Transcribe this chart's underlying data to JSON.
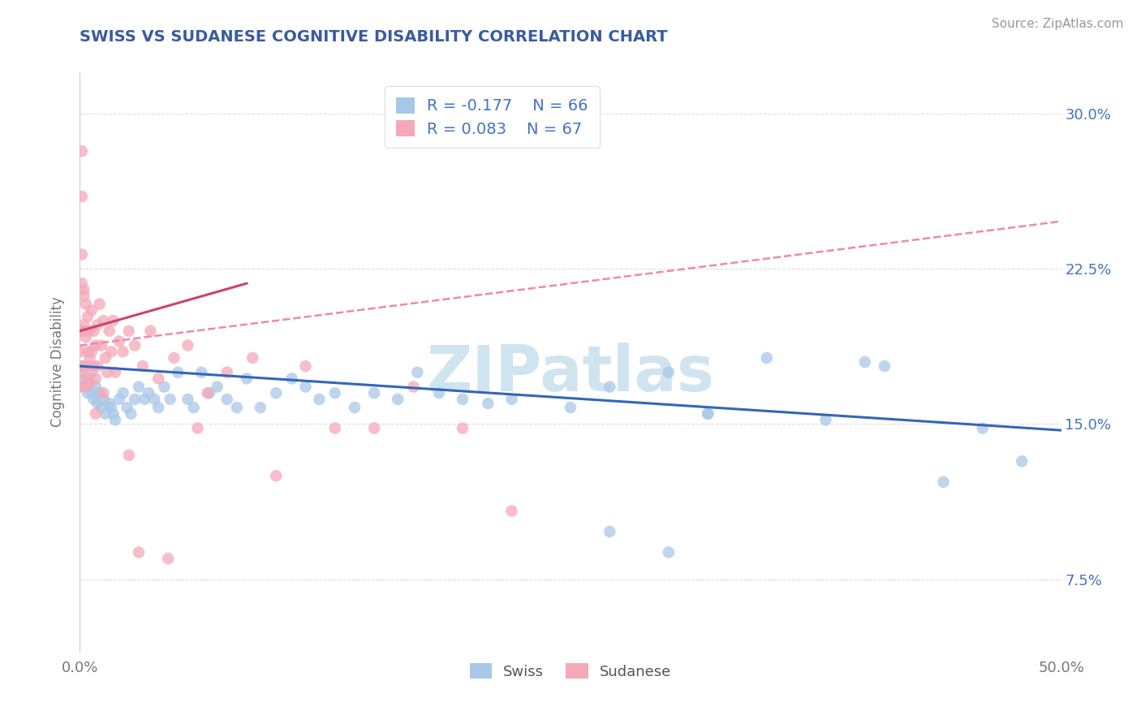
{
  "title": "SWISS VS SUDANESE COGNITIVE DISABILITY CORRELATION CHART",
  "source": "Source: ZipAtlas.com",
  "ylabel": "Cognitive Disability",
  "xlim": [
    0.0,
    0.5
  ],
  "ylim": [
    0.04,
    0.32
  ],
  "yticks": [
    0.075,
    0.15,
    0.225,
    0.3
  ],
  "ytick_labels": [
    "7.5%",
    "15.0%",
    "22.5%",
    "30.0%"
  ],
  "xticks": [
    0.0,
    0.5
  ],
  "xtick_labels": [
    "0.0%",
    "50.0%"
  ],
  "swiss_color": "#A8C8E8",
  "sudanese_color": "#F4A8B8",
  "swiss_line_color": "#3366BB",
  "sudanese_line_color": "#CC4466",
  "sudanese_line_dashed_color": "#EE88AA",
  "swiss_R": -0.177,
  "swiss_N": 66,
  "sudanese_R": 0.083,
  "sudanese_N": 67,
  "watermark": "ZIPatlas",
  "legend_swiss_label": "Swiss",
  "legend_sudanese_label": "Sudanese",
  "swiss_line_x0": 0.0,
  "swiss_line_y0": 0.178,
  "swiss_line_x1": 0.5,
  "swiss_line_y1": 0.147,
  "sudanese_line_solid_x0": 0.0,
  "sudanese_line_solid_y0": 0.195,
  "sudanese_line_solid_x1": 0.085,
  "sudanese_line_solid_x1_end": 0.085,
  "sudanese_line_solid_y1": 0.218,
  "sudanese_line_dashed_x0": 0.0,
  "sudanese_line_dashed_y0": 0.188,
  "sudanese_line_dashed_x1": 0.5,
  "sudanese_line_dashed_y1": 0.248,
  "swiss_points_x": [
    0.001,
    0.002,
    0.003,
    0.004,
    0.005,
    0.006,
    0.007,
    0.008,
    0.009,
    0.01,
    0.011,
    0.012,
    0.013,
    0.015,
    0.016,
    0.017,
    0.018,
    0.02,
    0.022,
    0.024,
    0.026,
    0.028,
    0.03,
    0.033,
    0.035,
    0.038,
    0.04,
    0.043,
    0.046,
    0.05,
    0.055,
    0.058,
    0.062,
    0.066,
    0.07,
    0.075,
    0.08,
    0.085,
    0.092,
    0.1,
    0.108,
    0.115,
    0.122,
    0.13,
    0.14,
    0.15,
    0.162,
    0.172,
    0.183,
    0.195,
    0.208,
    0.22,
    0.25,
    0.27,
    0.3,
    0.32,
    0.35,
    0.38,
    0.41,
    0.44,
    0.46,
    0.48,
    0.3,
    0.27,
    0.32,
    0.4
  ],
  "swiss_points_y": [
    0.178,
    0.172,
    0.168,
    0.165,
    0.17,
    0.165,
    0.162,
    0.168,
    0.16,
    0.165,
    0.158,
    0.162,
    0.155,
    0.16,
    0.158,
    0.155,
    0.152,
    0.162,
    0.165,
    0.158,
    0.155,
    0.162,
    0.168,
    0.162,
    0.165,
    0.162,
    0.158,
    0.168,
    0.162,
    0.175,
    0.162,
    0.158,
    0.175,
    0.165,
    0.168,
    0.162,
    0.158,
    0.172,
    0.158,
    0.165,
    0.172,
    0.168,
    0.162,
    0.165,
    0.158,
    0.165,
    0.162,
    0.175,
    0.165,
    0.162,
    0.16,
    0.162,
    0.158,
    0.168,
    0.175,
    0.155,
    0.182,
    0.152,
    0.178,
    0.122,
    0.148,
    0.132,
    0.088,
    0.098,
    0.155,
    0.18
  ],
  "sudanese_points_x": [
    0.0,
    0.0,
    0.0,
    0.0,
    0.001,
    0.001,
    0.001,
    0.001,
    0.001,
    0.002,
    0.002,
    0.002,
    0.002,
    0.002,
    0.003,
    0.003,
    0.003,
    0.003,
    0.004,
    0.004,
    0.004,
    0.005,
    0.005,
    0.005,
    0.006,
    0.006,
    0.006,
    0.007,
    0.007,
    0.008,
    0.008,
    0.009,
    0.009,
    0.01,
    0.011,
    0.012,
    0.013,
    0.014,
    0.015,
    0.016,
    0.017,
    0.018,
    0.02,
    0.022,
    0.025,
    0.028,
    0.032,
    0.036,
    0.04,
    0.048,
    0.055,
    0.065,
    0.075,
    0.088,
    0.1,
    0.115,
    0.13,
    0.15,
    0.17,
    0.195,
    0.22,
    0.025,
    0.012,
    0.008,
    0.03,
    0.045,
    0.06
  ],
  "sudanese_points_y": [
    0.195,
    0.185,
    0.175,
    0.168,
    0.282,
    0.26,
    0.232,
    0.218,
    0.195,
    0.212,
    0.195,
    0.178,
    0.215,
    0.198,
    0.208,
    0.192,
    0.178,
    0.168,
    0.202,
    0.185,
    0.172,
    0.195,
    0.182,
    0.17,
    0.205,
    0.185,
    0.175,
    0.195,
    0.178,
    0.188,
    0.172,
    0.198,
    0.178,
    0.208,
    0.188,
    0.2,
    0.182,
    0.175,
    0.195,
    0.185,
    0.2,
    0.175,
    0.19,
    0.185,
    0.195,
    0.188,
    0.178,
    0.195,
    0.172,
    0.182,
    0.188,
    0.165,
    0.175,
    0.182,
    0.125,
    0.178,
    0.148,
    0.148,
    0.168,
    0.148,
    0.108,
    0.135,
    0.165,
    0.155,
    0.088,
    0.085,
    0.148
  ],
  "title_color": "#3A5BA0",
  "axis_label_color": "#777777",
  "tick_color_right": "#4472C4",
  "watermark_color": "#D0E4F0",
  "grid_color": "#DDDDDD",
  "background_color": "#FFFFFF",
  "title_fontsize": 14,
  "tick_fontsize": 13,
  "ylabel_fontsize": 12,
  "source_fontsize": 11,
  "legend_fontsize": 14,
  "watermark_fontsize": 56
}
